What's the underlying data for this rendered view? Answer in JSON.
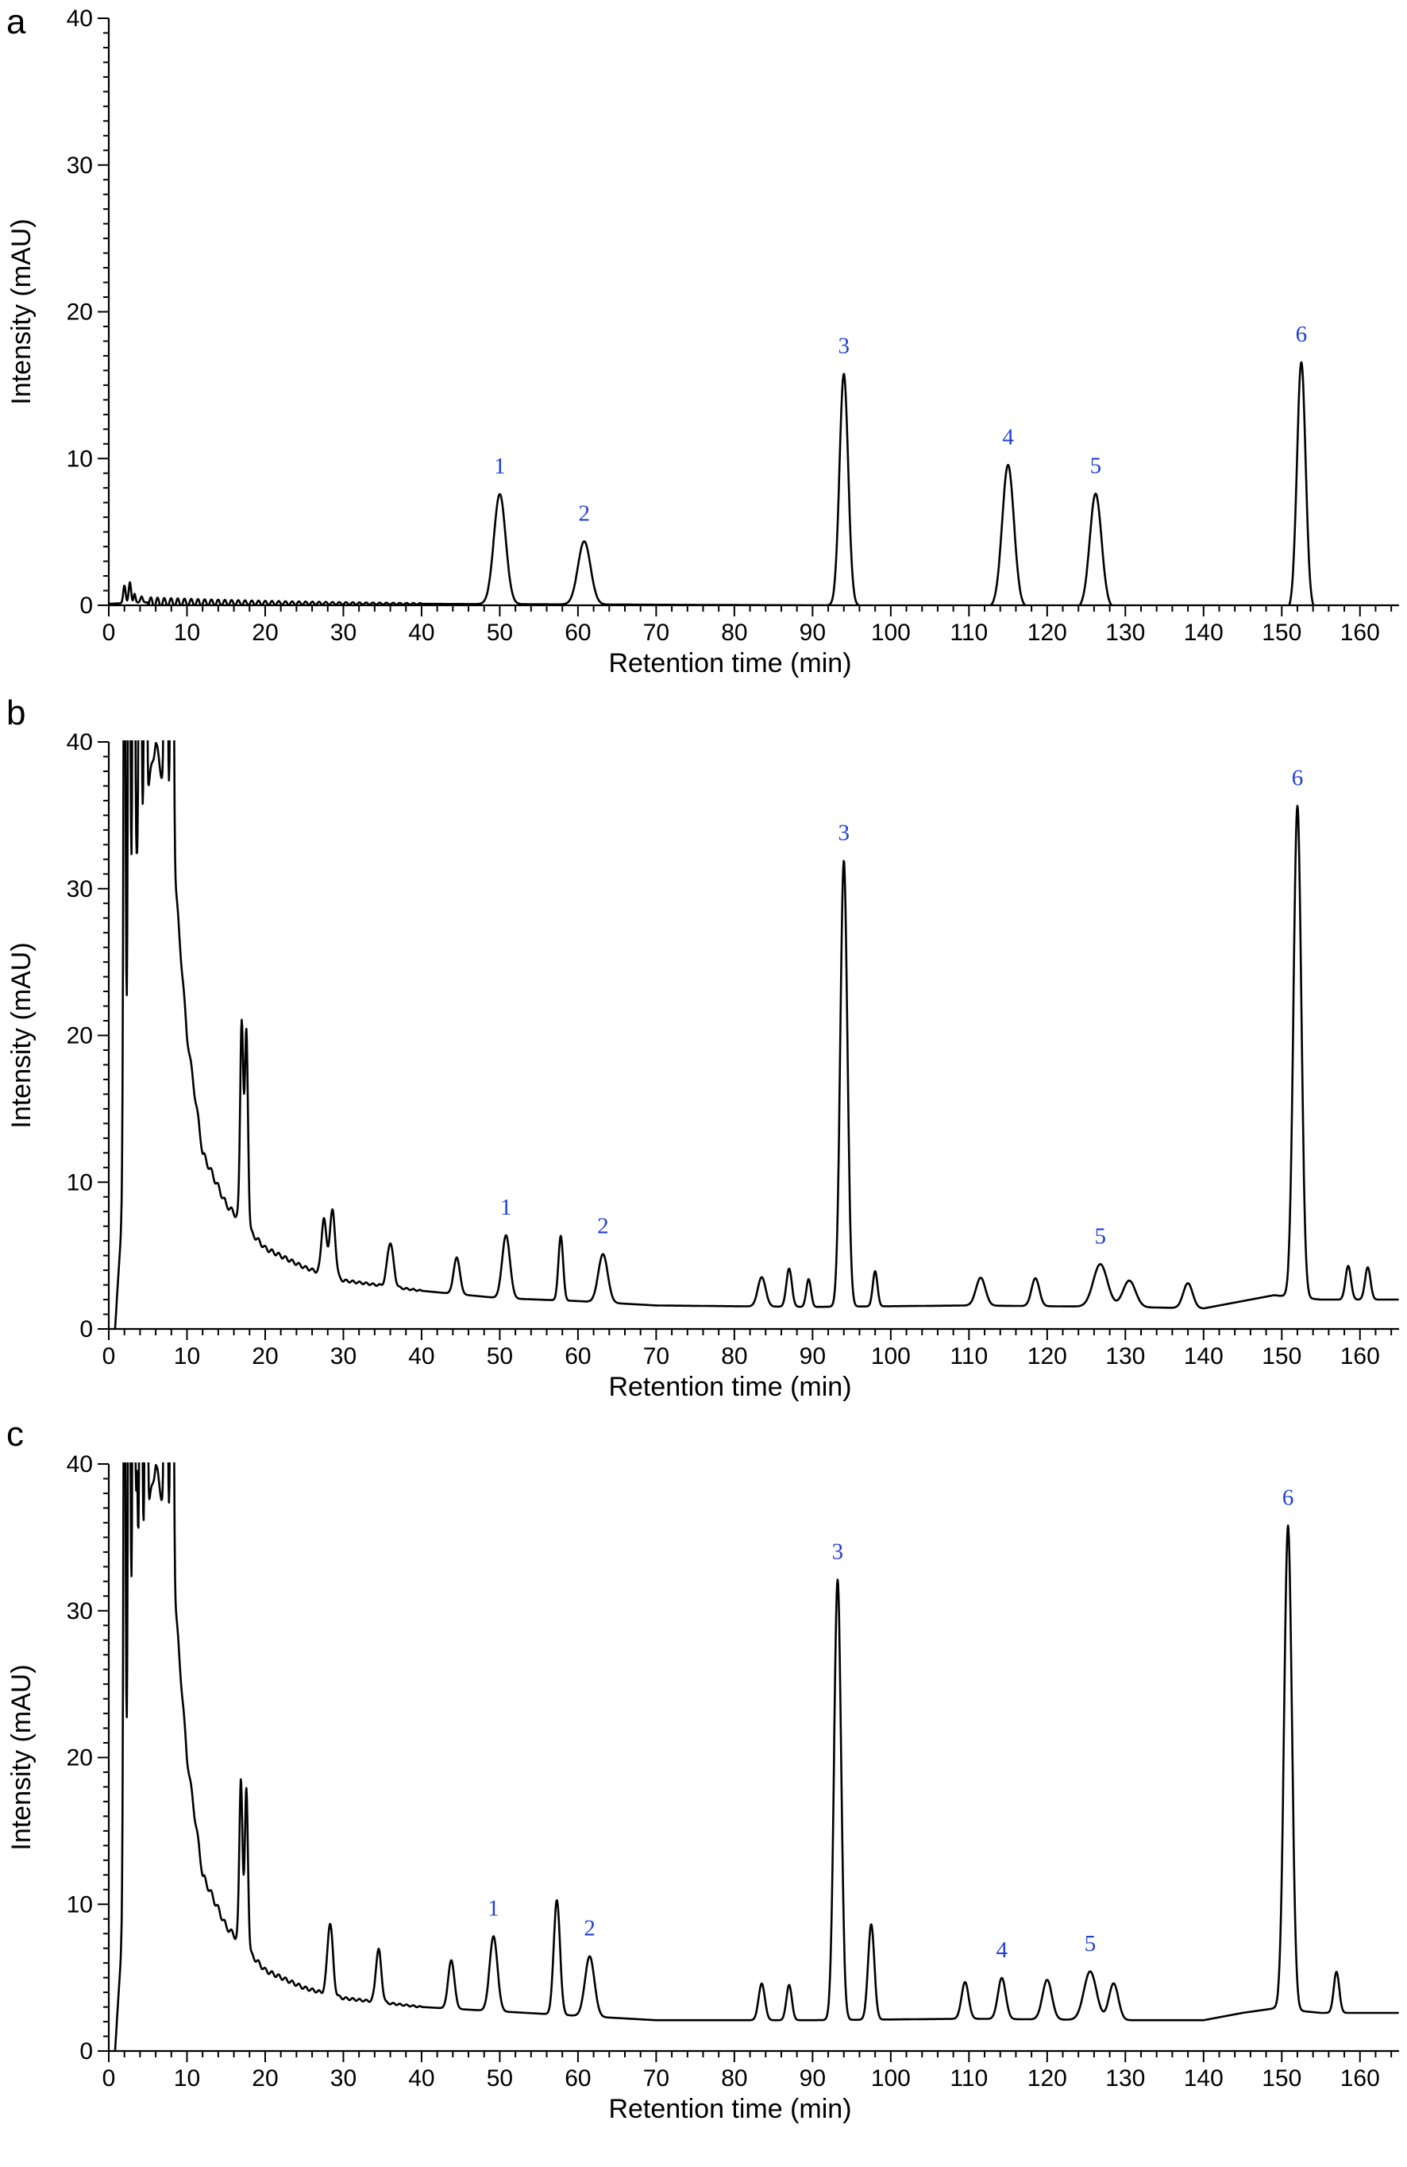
{
  "chart_data": [
    {
      "panel": "a",
      "type": "line",
      "xlabel": "Retention time (min)",
      "ylabel": "Intensity (mAU)",
      "xlim": [
        0,
        165
      ],
      "ylim": [
        0,
        40
      ],
      "xticks": [
        0,
        10,
        20,
        30,
        40,
        50,
        60,
        70,
        80,
        90,
        100,
        110,
        120,
        130,
        140,
        150,
        160
      ],
      "yticks": [
        0,
        10,
        20,
        30,
        40
      ],
      "baseline": [
        [
          0,
          0.1
        ],
        [
          4,
          0.2
        ],
        [
          40,
          0.1
        ],
        [
          90,
          0.0
        ],
        [
          165,
          -0.4
        ]
      ],
      "peaks": [
        {
          "label": "1",
          "rt": 50.0,
          "height": 7.5,
          "width": 0.75
        },
        {
          "label": "2",
          "rt": 60.8,
          "height": 4.3,
          "width": 0.8
        },
        {
          "label": "3",
          "rt": 94.0,
          "height": 15.8,
          "width": 0.55
        },
        {
          "label": "4",
          "rt": 115.0,
          "height": 9.7,
          "width": 0.75
        },
        {
          "label": "5",
          "rt": 126.2,
          "height": 7.8,
          "width": 0.75
        },
        {
          "label": "6",
          "rt": 152.5,
          "height": 16.9,
          "width": 0.55
        }
      ],
      "minor_peaks": [
        {
          "rt": 2.0,
          "height": 1.2,
          "width": 0.15
        },
        {
          "rt": 2.7,
          "height": 1.4,
          "width": 0.15
        },
        {
          "rt": 3.3,
          "height": 0.6,
          "width": 0.12
        },
        {
          "rt": 4.2,
          "height": 0.4,
          "width": 0.15
        }
      ]
    },
    {
      "panel": "b",
      "type": "line",
      "xlabel": "Retention time (min)",
      "ylabel": "Intensity (mAU)",
      "xlim": [
        0,
        165
      ],
      "ylim": [
        0,
        40
      ],
      "xticks": [
        0,
        10,
        20,
        30,
        40,
        50,
        60,
        70,
        80,
        90,
        100,
        110,
        120,
        130,
        140,
        150,
        160
      ],
      "yticks": [
        0,
        10,
        20,
        30,
        40
      ],
      "baseline": [
        [
          0.8,
          0
        ],
        [
          1.5,
          6
        ],
        [
          3,
          30
        ],
        [
          6,
          40
        ],
        [
          8,
          34
        ],
        [
          10,
          20
        ],
        [
          12,
          12
        ],
        [
          15,
          8.5
        ],
        [
          20,
          5.5
        ],
        [
          25,
          4.2
        ],
        [
          30,
          3.3
        ],
        [
          40,
          2.6
        ],
        [
          50,
          2.1
        ],
        [
          60,
          1.9
        ],
        [
          70,
          1.6
        ],
        [
          90,
          1.5
        ],
        [
          110,
          1.6
        ],
        [
          130,
          1.5
        ],
        [
          140,
          1.4
        ],
        [
          145,
          1.9
        ],
        [
          149,
          2.3
        ],
        [
          155,
          2.0
        ],
        [
          165,
          2.0
        ]
      ],
      "peaks": [
        {
          "label": "1",
          "rt": 50.8,
          "height": 4.3,
          "width": 0.5
        },
        {
          "label": "2",
          "rt": 63.2,
          "height": 3.3,
          "width": 0.6
        },
        {
          "label": "3",
          "rt": 94.0,
          "height": 30.4,
          "width": 0.45
        },
        {
          "label": "5",
          "rt": 126.8,
          "height": 2.9,
          "width": 0.9
        },
        {
          "label": "6",
          "rt": 152.0,
          "height": 33.5,
          "width": 0.5
        }
      ],
      "minor_peaks": [
        {
          "rt": 2.0,
          "height": 45,
          "width": 0.12
        },
        {
          "rt": 2.6,
          "height": 45,
          "width": 0.12
        },
        {
          "rt": 3.2,
          "height": 45,
          "width": 0.12
        },
        {
          "rt": 4.0,
          "height": 45,
          "width": 0.12
        },
        {
          "rt": 4.7,
          "height": 45,
          "width": 0.12
        },
        {
          "rt": 7.3,
          "height": 45,
          "width": 0.15
        },
        {
          "rt": 8.1,
          "height": 45,
          "width": 0.15
        },
        {
          "rt": 17.0,
          "height": 13.8,
          "width": 0.2
        },
        {
          "rt": 17.6,
          "height": 13.3,
          "width": 0.2
        },
        {
          "rt": 27.5,
          "height": 3.8,
          "width": 0.3
        },
        {
          "rt": 28.6,
          "height": 4.5,
          "width": 0.35
        },
        {
          "rt": 36.0,
          "height": 3.0,
          "width": 0.4
        },
        {
          "rt": 44.5,
          "height": 2.5,
          "width": 0.4
        },
        {
          "rt": 57.8,
          "height": 4.4,
          "width": 0.3
        },
        {
          "rt": 83.5,
          "height": 2.0,
          "width": 0.5
        },
        {
          "rt": 87.0,
          "height": 2.6,
          "width": 0.35
        },
        {
          "rt": 89.5,
          "height": 1.9,
          "width": 0.3
        },
        {
          "rt": 98.0,
          "height": 2.4,
          "width": 0.3
        },
        {
          "rt": 111.5,
          "height": 1.9,
          "width": 0.6
        },
        {
          "rt": 118.5,
          "height": 1.9,
          "width": 0.5
        },
        {
          "rt": 130.5,
          "height": 1.8,
          "width": 0.8
        },
        {
          "rt": 138.0,
          "height": 1.7,
          "width": 0.6
        },
        {
          "rt": 158.5,
          "height": 2.3,
          "width": 0.35
        },
        {
          "rt": 161.0,
          "height": 2.2,
          "width": 0.35
        }
      ]
    },
    {
      "panel": "c",
      "type": "line",
      "xlabel": "Retention time (min)",
      "ylabel": "Intensity (mAU)",
      "xlim": [
        0,
        165
      ],
      "ylim": [
        0,
        40
      ],
      "xticks": [
        0,
        10,
        20,
        30,
        40,
        50,
        60,
        70,
        80,
        90,
        100,
        110,
        120,
        130,
        140,
        150,
        160
      ],
      "yticks": [
        0,
        10,
        20,
        30,
        40
      ],
      "baseline": [
        [
          0.8,
          0
        ],
        [
          1.5,
          6
        ],
        [
          3,
          30
        ],
        [
          6,
          40
        ],
        [
          8,
          34
        ],
        [
          10,
          20
        ],
        [
          12,
          12
        ],
        [
          15,
          8.5
        ],
        [
          20,
          5.5
        ],
        [
          25,
          4.3
        ],
        [
          30,
          3.6
        ],
        [
          40,
          3.0
        ],
        [
          50,
          2.7
        ],
        [
          60,
          2.4
        ],
        [
          70,
          2.1
        ],
        [
          90,
          2.1
        ],
        [
          110,
          2.2
        ],
        [
          130,
          2.1
        ],
        [
          140,
          2.1
        ],
        [
          145,
          2.6
        ],
        [
          149,
          2.9
        ],
        [
          155,
          2.6
        ],
        [
          165,
          2.6
        ]
      ],
      "peaks": [
        {
          "label": "1",
          "rt": 49.2,
          "height": 5.1,
          "width": 0.5
        },
        {
          "label": "2",
          "rt": 61.5,
          "height": 4.1,
          "width": 0.6
        },
        {
          "label": "3",
          "rt": 93.2,
          "height": 30.0,
          "width": 0.45
        },
        {
          "label": "4",
          "rt": 114.2,
          "height": 2.8,
          "width": 0.5
        },
        {
          "label": "5",
          "rt": 125.5,
          "height": 3.3,
          "width": 0.8
        },
        {
          "label": "6",
          "rt": 150.8,
          "height": 33.0,
          "width": 0.5
        }
      ],
      "minor_peaks": [
        {
          "rt": 2.0,
          "height": 45,
          "width": 0.12
        },
        {
          "rt": 2.6,
          "height": 45,
          "width": 0.12
        },
        {
          "rt": 3.2,
          "height": 45,
          "width": 0.12
        },
        {
          "rt": 3.6,
          "height": 7.5,
          "width": 0.1
        },
        {
          "rt": 4.1,
          "height": 45,
          "width": 0.12
        },
        {
          "rt": 4.8,
          "height": 45,
          "width": 0.12
        },
        {
          "rt": 7.3,
          "height": 45,
          "width": 0.15
        },
        {
          "rt": 8.1,
          "height": 45,
          "width": 0.15
        },
        {
          "rt": 16.9,
          "height": 11.3,
          "width": 0.2
        },
        {
          "rt": 17.6,
          "height": 10.9,
          "width": 0.2
        },
        {
          "rt": 28.3,
          "height": 4.9,
          "width": 0.35
        },
        {
          "rt": 34.5,
          "height": 3.6,
          "width": 0.35
        },
        {
          "rt": 43.8,
          "height": 3.3,
          "width": 0.4
        },
        {
          "rt": 57.3,
          "height": 7.8,
          "width": 0.4
        },
        {
          "rt": 83.5,
          "height": 2.5,
          "width": 0.4
        },
        {
          "rt": 87.0,
          "height": 2.4,
          "width": 0.35
        },
        {
          "rt": 97.5,
          "height": 6.5,
          "width": 0.4
        },
        {
          "rt": 109.5,
          "height": 2.5,
          "width": 0.45
        },
        {
          "rt": 120.0,
          "height": 2.7,
          "width": 0.6
        },
        {
          "rt": 128.5,
          "height": 2.5,
          "width": 0.6
        },
        {
          "rt": 157.0,
          "height": 2.8,
          "width": 0.35
        }
      ]
    }
  ]
}
